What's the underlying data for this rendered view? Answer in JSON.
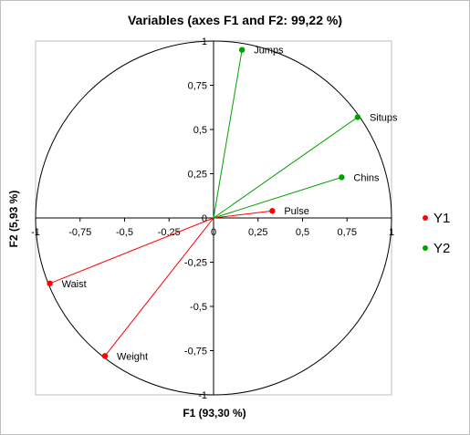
{
  "chart_data": {
    "type": "scatter",
    "title": "Variables (axes F1 and F2: 99,22 %)",
    "xlabel": "F1 (93,30 %)",
    "ylabel": "F2 (5,93 %)",
    "xlim": [
      -1,
      1
    ],
    "ylim": [
      -1,
      1
    ],
    "xticks": [
      "-1",
      "-0,75",
      "-0,5",
      "-0,25",
      "0",
      "0,25",
      "0,5",
      "0,75",
      "1"
    ],
    "yticks": [
      "-1",
      "-0,75",
      "-0,5",
      "-0,25",
      "0",
      "0,25",
      "0,5",
      "0,75",
      "1"
    ],
    "grid": false,
    "unit_circle": true,
    "legend_position": "right",
    "series": [
      {
        "name": "Y1",
        "color": "#ff0000",
        "points": [
          {
            "label": "Pulse",
            "x": 0.33,
            "y": 0.04
          },
          {
            "label": "Waist",
            "x": -0.92,
            "y": -0.37
          },
          {
            "label": "Weight",
            "x": -0.61,
            "y": -0.78
          }
        ]
      },
      {
        "name": "Y2",
        "color": "#00a000",
        "points": [
          {
            "label": "Jumps",
            "x": 0.16,
            "y": 0.95
          },
          {
            "label": "Situps",
            "x": 0.81,
            "y": 0.57
          },
          {
            "label": "Chins",
            "x": 0.72,
            "y": 0.23
          }
        ]
      }
    ]
  }
}
